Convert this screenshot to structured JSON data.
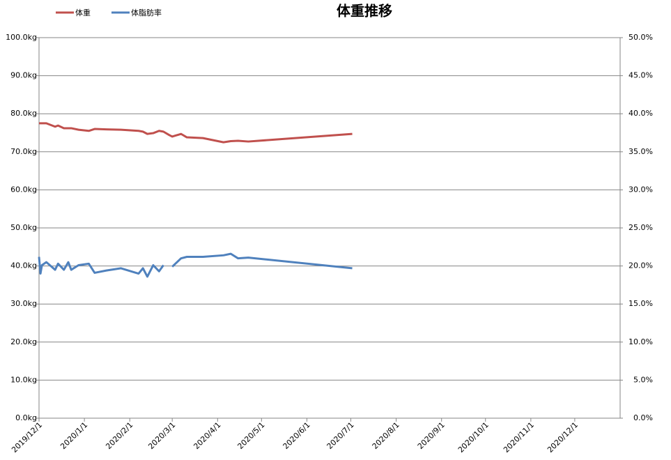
{
  "chart_data": {
    "type": "line",
    "title": "体重推移",
    "x": [
      "2019/12/1",
      "2019/12/2",
      "2019/12/3",
      "2019/12/6",
      "2019/12/12",
      "2019/12/14",
      "2019/12/18",
      "2019/12/21",
      "2019/12/23",
      "2019/12/28",
      "2020/1/4",
      "2020/1/8",
      "2020/1/16",
      "2020/1/26",
      "2020/2/7",
      "2020/2/10",
      "2020/2/13",
      "2020/2/17",
      "2020/2/21",
      "2020/2/24",
      "2020/2/28",
      "2020/3/1",
      "2020/3/7",
      "2020/3/11",
      "2020/3/22",
      "2020/4/5",
      "2020/4/10",
      "2020/4/15",
      "2020/4/22",
      "2020/7/2"
    ],
    "series": [
      {
        "name": "体重",
        "color": "#c0504d",
        "values": [
          77.5,
          77.5,
          77.5,
          77.5,
          76.6,
          76.9,
          76.2,
          76.2,
          76.2,
          75.8,
          75.5,
          76.0,
          75.9,
          75.8,
          75.5,
          75.3,
          74.7,
          74.9,
          75.5,
          75.3,
          74.4,
          74.0,
          74.7,
          73.8,
          73.6,
          72.5,
          72.8,
          72.9,
          72.7,
          74.7
        ]
      },
      {
        "name": "体脂肪率",
        "color": "#4f81bd",
        "axis": "y2",
        "values": [
          21.2,
          19.0,
          20.1,
          20.5,
          19.5,
          20.3,
          19.5,
          20.5,
          19.5,
          20.1,
          20.3,
          19.1,
          19.4,
          19.7,
          19.0,
          19.7,
          18.6,
          20.1,
          19.3,
          20.1,
          null,
          19.9,
          21.0,
          21.2,
          21.2,
          21.4,
          21.6,
          21.0,
          21.1,
          19.7
        ]
      }
    ],
    "xlim": [
      "2019/12/1",
      "2021/1/1"
    ],
    "xticks": [
      "2019/12/1",
      "2020/1/1",
      "2020/2/1",
      "2020/3/1",
      "2020/4/1",
      "2020/5/1",
      "2020/6/1",
      "2020/7/1",
      "2020/8/1",
      "2020/9/1",
      "2020/10/1",
      "2020/11/1",
      "2020/12/1"
    ],
    "ylim": [
      0,
      100
    ],
    "yticks": [
      {
        "value": 0,
        "label": "0.0kg"
      },
      {
        "value": 10,
        "label": "10.0kg"
      },
      {
        "value": 20,
        "label": "20.0kg"
      },
      {
        "value": 30,
        "label": "30.0kg"
      },
      {
        "value": 40,
        "label": "40.0kg"
      },
      {
        "value": 50,
        "label": "50.0kg"
      },
      {
        "value": 60,
        "label": "60.0kg"
      },
      {
        "value": 70,
        "label": "70.0kg"
      },
      {
        "value": 80,
        "label": "80.0kg"
      },
      {
        "value": 90,
        "label": "90.0kg"
      },
      {
        "value": 100,
        "label": "100.0kg"
      }
    ],
    "y2lim": [
      0,
      50
    ],
    "y2ticks": [
      {
        "value": 0,
        "label": "0.0%"
      },
      {
        "value": 5,
        "label": "5.0%"
      },
      {
        "value": 10,
        "label": "10.0%"
      },
      {
        "value": 15,
        "label": "15.0%"
      },
      {
        "value": 20,
        "label": "20.0%"
      },
      {
        "value": 25,
        "label": "25.0%"
      },
      {
        "value": 30,
        "label": "30.0%"
      },
      {
        "value": 35,
        "label": "35.0%"
      },
      {
        "value": 40,
        "label": "40.0%"
      },
      {
        "value": 45,
        "label": "45.0%"
      },
      {
        "value": 50,
        "label": "50.0%"
      }
    ],
    "grid": true,
    "legend": "top-left"
  }
}
